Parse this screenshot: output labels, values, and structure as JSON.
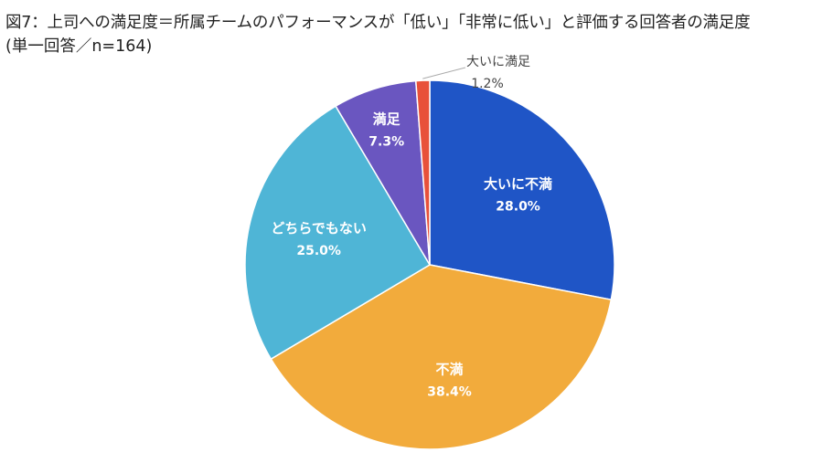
{
  "chart_data": {
    "type": "pie",
    "title": "図7：上司への満足度＝所属チームのパフォーマンスが「低い」「非常に低い」と評価する回答者の満足度",
    "subtitle": "(単一回答／n=164)",
    "slices": [
      {
        "label": "大いに不満",
        "value": 28.0,
        "value_text": "28.0%",
        "color": "#1f55c6"
      },
      {
        "label": "不満",
        "value": 38.4,
        "value_text": "38.4%",
        "color": "#f2ab3c"
      },
      {
        "label": "どちらでもない",
        "value": 25.0,
        "value_text": "25.0%",
        "color": "#4fb5d6"
      },
      {
        "label": "満足",
        "value": 7.3,
        "value_text": "7.3%",
        "color": "#6a56c0"
      },
      {
        "label": "大いに満足",
        "value": 1.2,
        "value_text": "1.2%",
        "color": "#e8513a"
      }
    ],
    "start_angle": "12 o'clock",
    "direction": "clockwise"
  }
}
